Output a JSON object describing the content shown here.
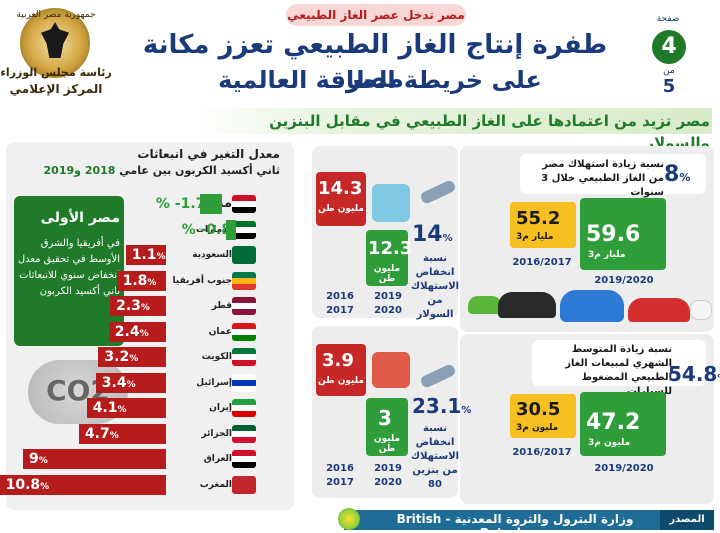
{
  "header": {
    "top_tag": "مصر تدخل عصر الغاز الطبيعي",
    "title_line1": "طفرة إنتاج الغاز الطبيعي تعزز مكانة مصر",
    "title_line2": "على خريطة الطاقة العالمية",
    "subtitle": "مصر تزيد من اعتمادها على الغاز الطبيعي في مقابل البنزين والسولار",
    "page_label": "صفحة",
    "page_number": "4",
    "page_of": "من",
    "page_total": "5"
  },
  "logo": {
    "top": "جمهورية مصر العربية",
    "line1": "رئاسة مجلس الوزراء",
    "line2": "المركز الإعلامي"
  },
  "emissions": {
    "title_line1": "معدل التغير في انبعاثات",
    "title_line2": "ثاني أكسيد الكربون بين عامي",
    "years": "2018 و2019",
    "africa_title": "مصر الأولى",
    "africa_text": "في أفريقيا والشرق الأوسط في تحقيق معدل انخفاض سنوي للانبعاثات ثاني أكسيد الكربون",
    "co2_label": "CO2"
  },
  "chart_data": {
    "type": "bar",
    "title": "معدل التغير في انبعاثات ثاني أكسيد الكربون بين عامي 2018 و2019",
    "unit": "%",
    "categories": [
      "مصر",
      "الإمارات",
      "السعودية",
      "جنوب أفريقيا",
      "قطر",
      "عمان",
      "الكويت",
      "إسرائيل",
      "إيران",
      "الجزائر",
      "العراق",
      "المغرب"
    ],
    "values": [
      -1.7,
      -0.8,
      1.1,
      1.8,
      2.3,
      2.4,
      3.2,
      3.4,
      4.1,
      4.7,
      9,
      10.8
    ],
    "labels": [
      "-1.7",
      "-0.8",
      "1.1",
      "1.8",
      "2.3",
      "2.4",
      "3.2",
      "3.4",
      "4.1",
      "4.7",
      "9",
      "10.8"
    ],
    "colors": {
      "negative": "#2e9d3a",
      "positive": "#b71c1c"
    }
  },
  "consumption": {
    "growth_value": "8",
    "growth_unit": "%",
    "growth_text": "نسبة زيادة استهلاك مصر من الغاز الطبيعي خلال 3 سنوات",
    "yr_2016": {
      "value": "55.2",
      "unit": "مليار م3",
      "label": "2016/2017"
    },
    "yr_2019": {
      "value": "59.6",
      "unit": "مليار م3",
      "label": "2019/2020"
    }
  },
  "vehicles": {
    "growth_value": "54.8",
    "growth_unit": "%",
    "growth_text": "نسبة زيادة المتوسط الشهري لمبيعات الغاز الطبيعي المضغوط للسيارات",
    "yr_2016": {
      "value": "30.5",
      "unit": "مليون م3",
      "label": "2016/2017"
    },
    "yr_2019": {
      "value": "47.2",
      "unit": "مليون م3",
      "label": "2019/2020"
    }
  },
  "diesel": {
    "old": {
      "value": "14.3",
      "unit": "مليون طن",
      "label": "2016 2017"
    },
    "new": {
      "value": "12.3",
      "unit": "مليون طن",
      "label": "2019 2020"
    },
    "drop_value": "14",
    "drop_unit": "%",
    "drop_text": "نسبة انخفاض الاستهلاك من السولار"
  },
  "gasoline": {
    "old": {
      "value": "3.9",
      "unit": "مليون طن",
      "label": "2016 2017"
    },
    "new": {
      "value": "3",
      "unit": "مليون طن",
      "label": "2019 2020"
    },
    "drop_value": "23.1",
    "drop_unit": "%",
    "drop_text": "نسبة انخفاض الاستهلاك من بنزين 80"
  },
  "footer": {
    "source_label": "المصدر",
    "source_text": "وزارة البترول والثروة المعدنية - British Petroleum"
  }
}
